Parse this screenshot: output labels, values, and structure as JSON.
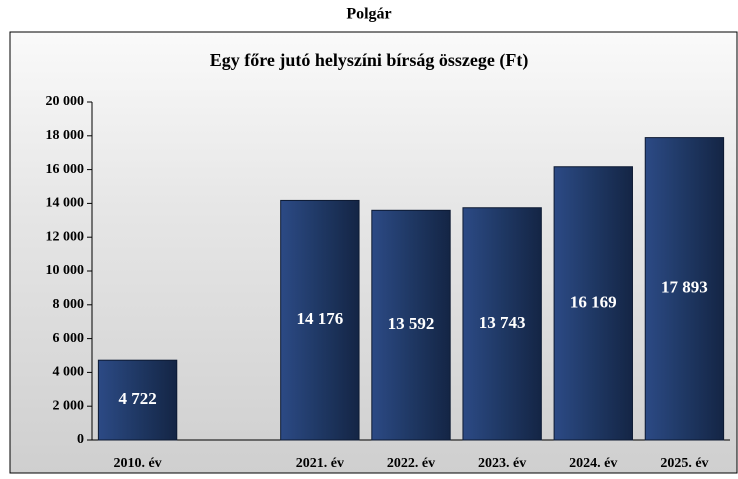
{
  "chart_data": {
    "type": "bar",
    "title": "Polgár",
    "subtitle": "Egy főre jutó helyszíni bírság összege (Ft)",
    "categories": [
      "2010. év",
      null,
      "2021. év",
      "2022. év",
      "2023. év",
      "2024. év",
      "2025. év"
    ],
    "values": [
      4722,
      null,
      14176,
      13592,
      13743,
      16169,
      17893
    ],
    "value_labels": [
      "4 722",
      null,
      "14 176",
      "13 592",
      "13 743",
      "16 169",
      "17 893"
    ],
    "color": "#1f3864",
    "ylim": [
      0,
      20000
    ],
    "yticks": [
      0,
      {
        "value": 2000,
        "label": "2 000"
      },
      {
        "value": 4000,
        "label": "4 000"
      },
      {
        "value": 6000,
        "label": "6 000"
      },
      {
        "value": 8000,
        "label": "8 000"
      },
      {
        "value": 10000,
        "label": "10 000"
      },
      {
        "value": 12000,
        "label": "12 000"
      },
      {
        "value": 14000,
        "label": "14 000"
      },
      {
        "value": 16000,
        "label": "16 000"
      },
      {
        "value": 18000,
        "label": "18 000"
      },
      {
        "value": 20000,
        "label": "20 000"
      }
    ]
  }
}
